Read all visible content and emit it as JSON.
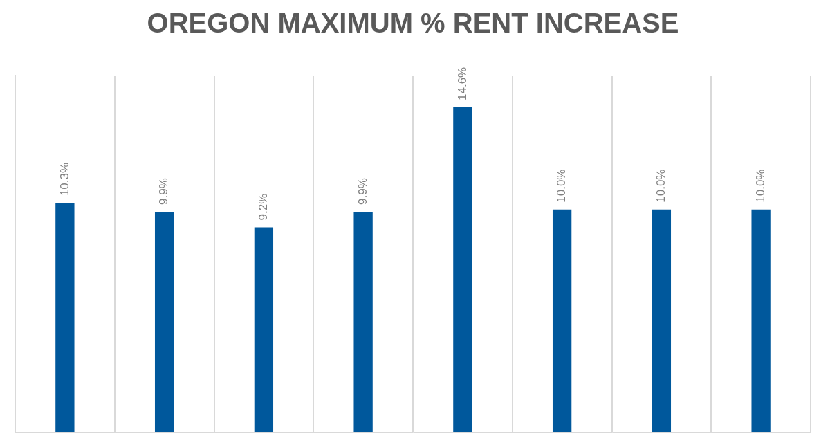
{
  "chart_data": {
    "type": "bar",
    "title": "OREGON MAXIMUM % RENT INCREASE",
    "categories": [
      null,
      null,
      null,
      null,
      null,
      null,
      null,
      null
    ],
    "values": [
      10.3,
      9.9,
      9.2,
      9.9,
      14.6,
      10.0,
      10.0,
      10.0
    ],
    "value_labels": [
      "10.3%",
      "9.9%",
      "9.2%",
      "9.9%",
      "14.6%",
      "10.0%",
      "10.0%",
      "10.0%"
    ],
    "color": "#00589c",
    "ylim": [
      0,
      16
    ],
    "grid": true,
    "data_labels": true,
    "tick_labels": false
  }
}
